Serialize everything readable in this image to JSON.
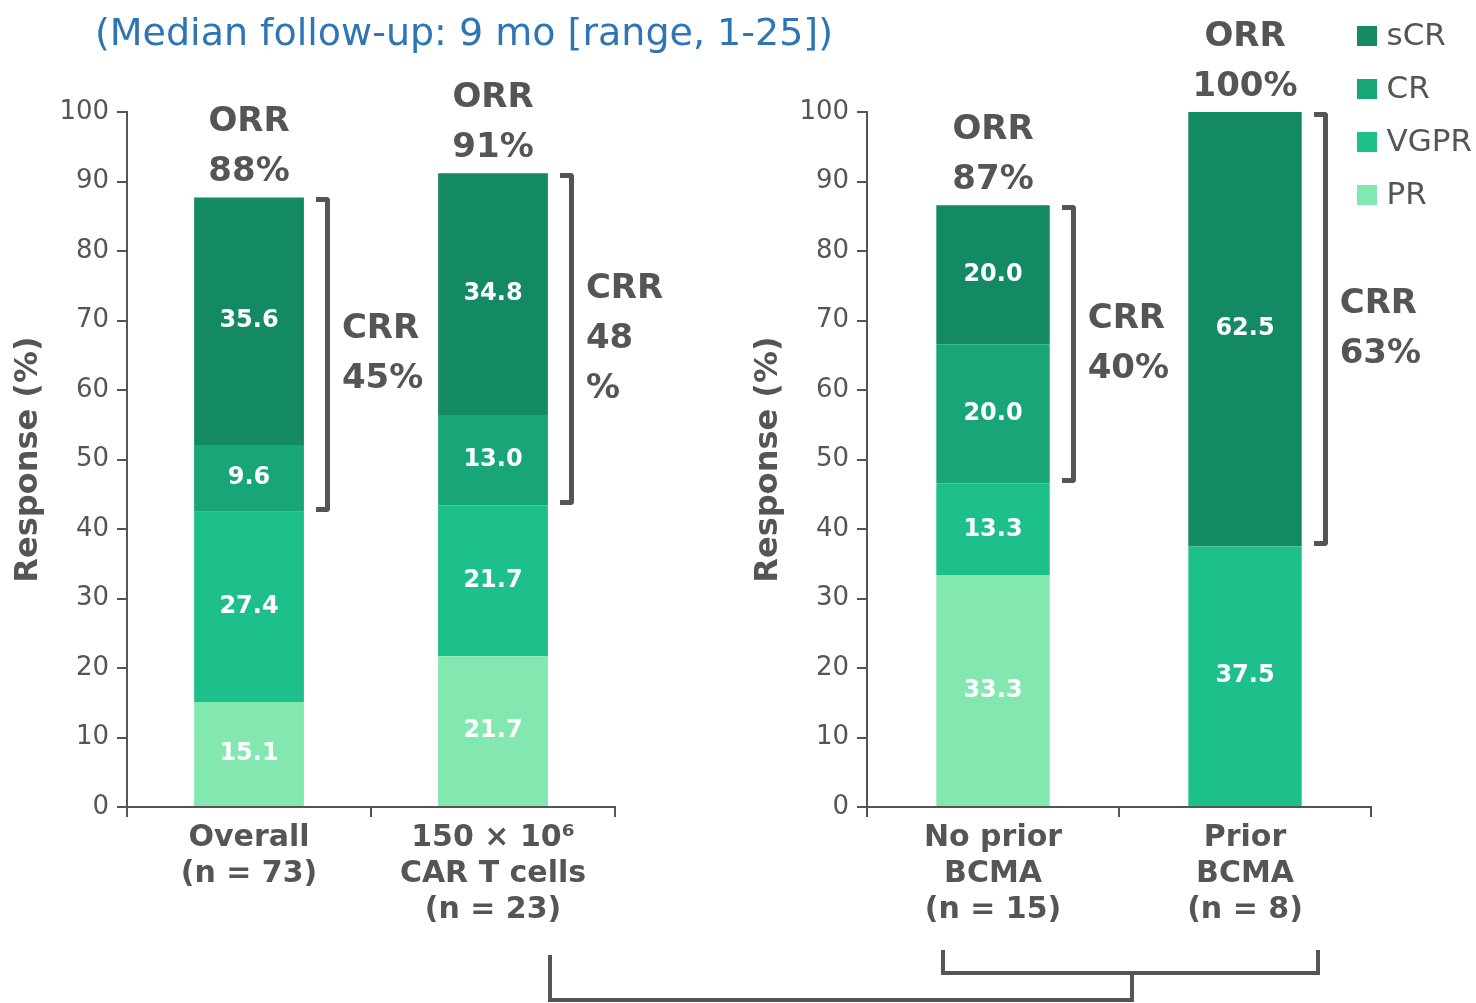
{
  "chart_data": [
    {
      "type": "bar",
      "title": "(Median follow-up: 9 mo [range, 1-25])",
      "ylabel": "Response (%)",
      "stacked": true,
      "grid": false,
      "legend": false,
      "categories": [
        "Overall\n(n = 73)",
        "150 × 10⁶\nCAR T cells\n(n = 23)"
      ],
      "series": [
        {
          "color": "#82e8b0",
          "values": [
            15.1,
            21.7
          ],
          "value_labels": [
            "15.1",
            "21.7"
          ]
        },
        {
          "color": "#1dbf8a",
          "values": [
            27.4,
            21.7
          ],
          "value_labels": [
            "27.4",
            "21.7"
          ]
        },
        {
          "color": "#18a678",
          "values": [
            9.6,
            13.0
          ],
          "value_labels": [
            "9.6",
            "13.0"
          ]
        },
        {
          "color": "#138a63",
          "values": [
            35.6,
            34.8
          ],
          "value_labels": [
            "35.6",
            "34.8"
          ]
        }
      ],
      "ylim": [
        0,
        100
      ],
      "yticks": [
        0,
        10,
        20,
        30,
        40,
        50,
        60,
        70,
        80,
        90,
        100
      ],
      "annotations": [
        "ORR\n88%",
        "CRR\n45%",
        "ORR\n91%",
        "CRR\n48\n%"
      ]
    },
    {
      "type": "bar",
      "ylabel": "Response (%)",
      "stacked": true,
      "grid": false,
      "legend": "top right",
      "categories": [
        "No prior\nBCMA\n(n = 15)",
        "Prior\nBCMA\n(n = 8)"
      ],
      "series": [
        {
          "name": "PR",
          "color": "#82e8b0",
          "values": [
            33.3,
            null
          ],
          "value_labels": [
            "33.3",
            null
          ]
        },
        {
          "name": "VGPR",
          "color": "#1dbf8a",
          "values": [
            13.3,
            37.5
          ],
          "value_labels": [
            "13.3",
            "37.5"
          ]
        },
        {
          "name": "CR",
          "color": "#18a678",
          "values": [
            20.0,
            null
          ],
          "value_labels": [
            "20.0",
            null
          ]
        },
        {
          "name": "sCR",
          "color": "#138a63",
          "values": [
            20.0,
            62.5
          ],
          "value_labels": [
            "20.0",
            "62.5"
          ]
        }
      ],
      "ylim": [
        0,
        100
      ],
      "yticks": [
        0,
        10,
        20,
        30,
        40,
        50,
        60,
        70,
        80,
        90,
        100
      ],
      "annotations": [
        "ORR\n87%",
        "CRR\n40%",
        "ORR\n100%",
        "CRR\n63%"
      ]
    }
  ]
}
